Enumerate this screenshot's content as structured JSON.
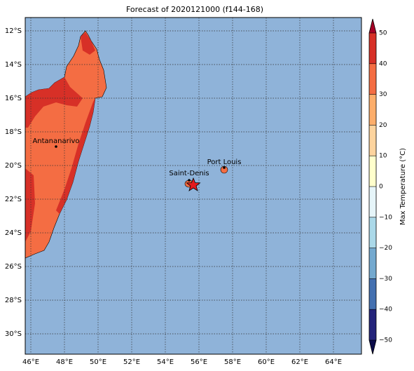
{
  "title": "Forecast of 2020121000 (f144-168)",
  "lon_ticks": [
    "46°E",
    "48°E",
    "50°E",
    "52°E",
    "54°E",
    "56°E",
    "58°E",
    "60°E",
    "62°E",
    "64°E"
  ],
  "lat_ticks": [
    "12°S",
    "14°S",
    "16°S",
    "18°S",
    "20°S",
    "22°S",
    "24°S",
    "26°S",
    "28°S",
    "30°S"
  ],
  "cities": [
    {
      "label": "Antananarivo"
    },
    {
      "label": "Saint-Denis"
    },
    {
      "label": "Port Louis"
    }
  ],
  "colorbar": {
    "label": "Max Temperature (°C)",
    "ticks": [
      {
        "value": -50,
        "label": "−50"
      },
      {
        "value": -40,
        "label": "−40"
      },
      {
        "value": -30,
        "label": "−30"
      },
      {
        "value": -20,
        "label": "−20"
      },
      {
        "value": -10,
        "label": "−10"
      },
      0,
      10,
      20,
      30,
      40,
      50
    ],
    "colors": [
      "#23237a",
      "#4470b0",
      "#74a9cf",
      "#abd9e9",
      "#e6f5f9",
      "#ffffcc",
      "#fdd49e",
      "#fdae6b",
      "#f46d43",
      "#d73027"
    ],
    "under_color": "#0b0b4a",
    "over_color": "#a50026"
  }
}
